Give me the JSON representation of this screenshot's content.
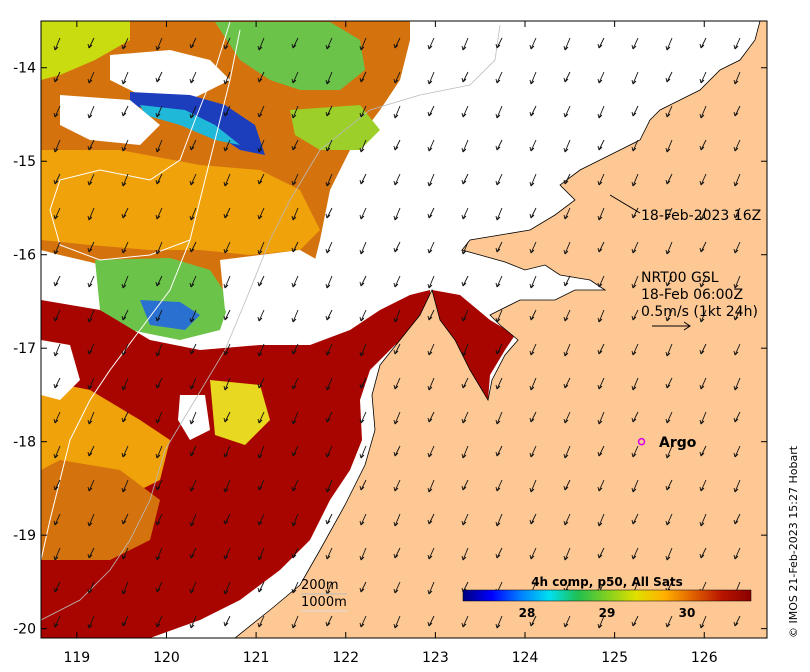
{
  "map": {
    "lon_range": [
      118.6,
      126.7
    ],
    "lat_range": [
      -20.1,
      -13.5
    ],
    "lon_ticks": [
      {
        "value": 119,
        "label": "119"
      },
      {
        "value": 120,
        "label": "120"
      },
      {
        "value": 121,
        "label": "121"
      },
      {
        "value": 122,
        "label": "122"
      },
      {
        "value": 123,
        "label": "123"
      },
      {
        "value": 124,
        "label": "124"
      },
      {
        "value": 125,
        "label": "125"
      },
      {
        "value": 126,
        "label": "126"
      }
    ],
    "lat_ticks": [
      {
        "value": -14,
        "label": "-14"
      },
      {
        "value": -15,
        "label": "-15"
      },
      {
        "value": -16,
        "label": "-16"
      },
      {
        "value": -17,
        "label": "-17"
      },
      {
        "value": -18,
        "label": "-18"
      },
      {
        "value": -19,
        "label": "-19"
      },
      {
        "value": -20,
        "label": "-20"
      }
    ],
    "colors": {
      "land": "#fdc894",
      "hot": "#a80500",
      "warm": "#d4730e",
      "mid": "#f0a20a",
      "cool": "#b5d315",
      "cold": "#1d3ebc",
      "arrow": "#111111"
    }
  },
  "annotations": {
    "date_label": "18-Feb-2023 16Z",
    "current_line1": "NRT00 GSL",
    "current_line2": "18-Feb 06:00Z",
    "current_line3": "0.5m/s (1kt 24h)",
    "depth_200": "200m",
    "depth_1000": "1000m",
    "argo_label": "Argo",
    "argo_lon": 125.3,
    "argo_lat": -18.0,
    "credit": "© IMOS 21-Feb-2023 15:27 Hobart"
  },
  "colorbar": {
    "title": "4h comp, p50, All Sats",
    "range": [
      27.2,
      30.8
    ],
    "ticks": [
      {
        "value": 28,
        "label": "28"
      },
      {
        "value": 29,
        "label": "29"
      },
      {
        "value": 30,
        "label": "30"
      }
    ],
    "stops": [
      "#00007f",
      "#0000ff",
      "#007fff",
      "#00e0f0",
      "#20c050",
      "#80d020",
      "#e0e000",
      "#ffb000",
      "#e06000",
      "#b81400",
      "#8a0000"
    ]
  }
}
